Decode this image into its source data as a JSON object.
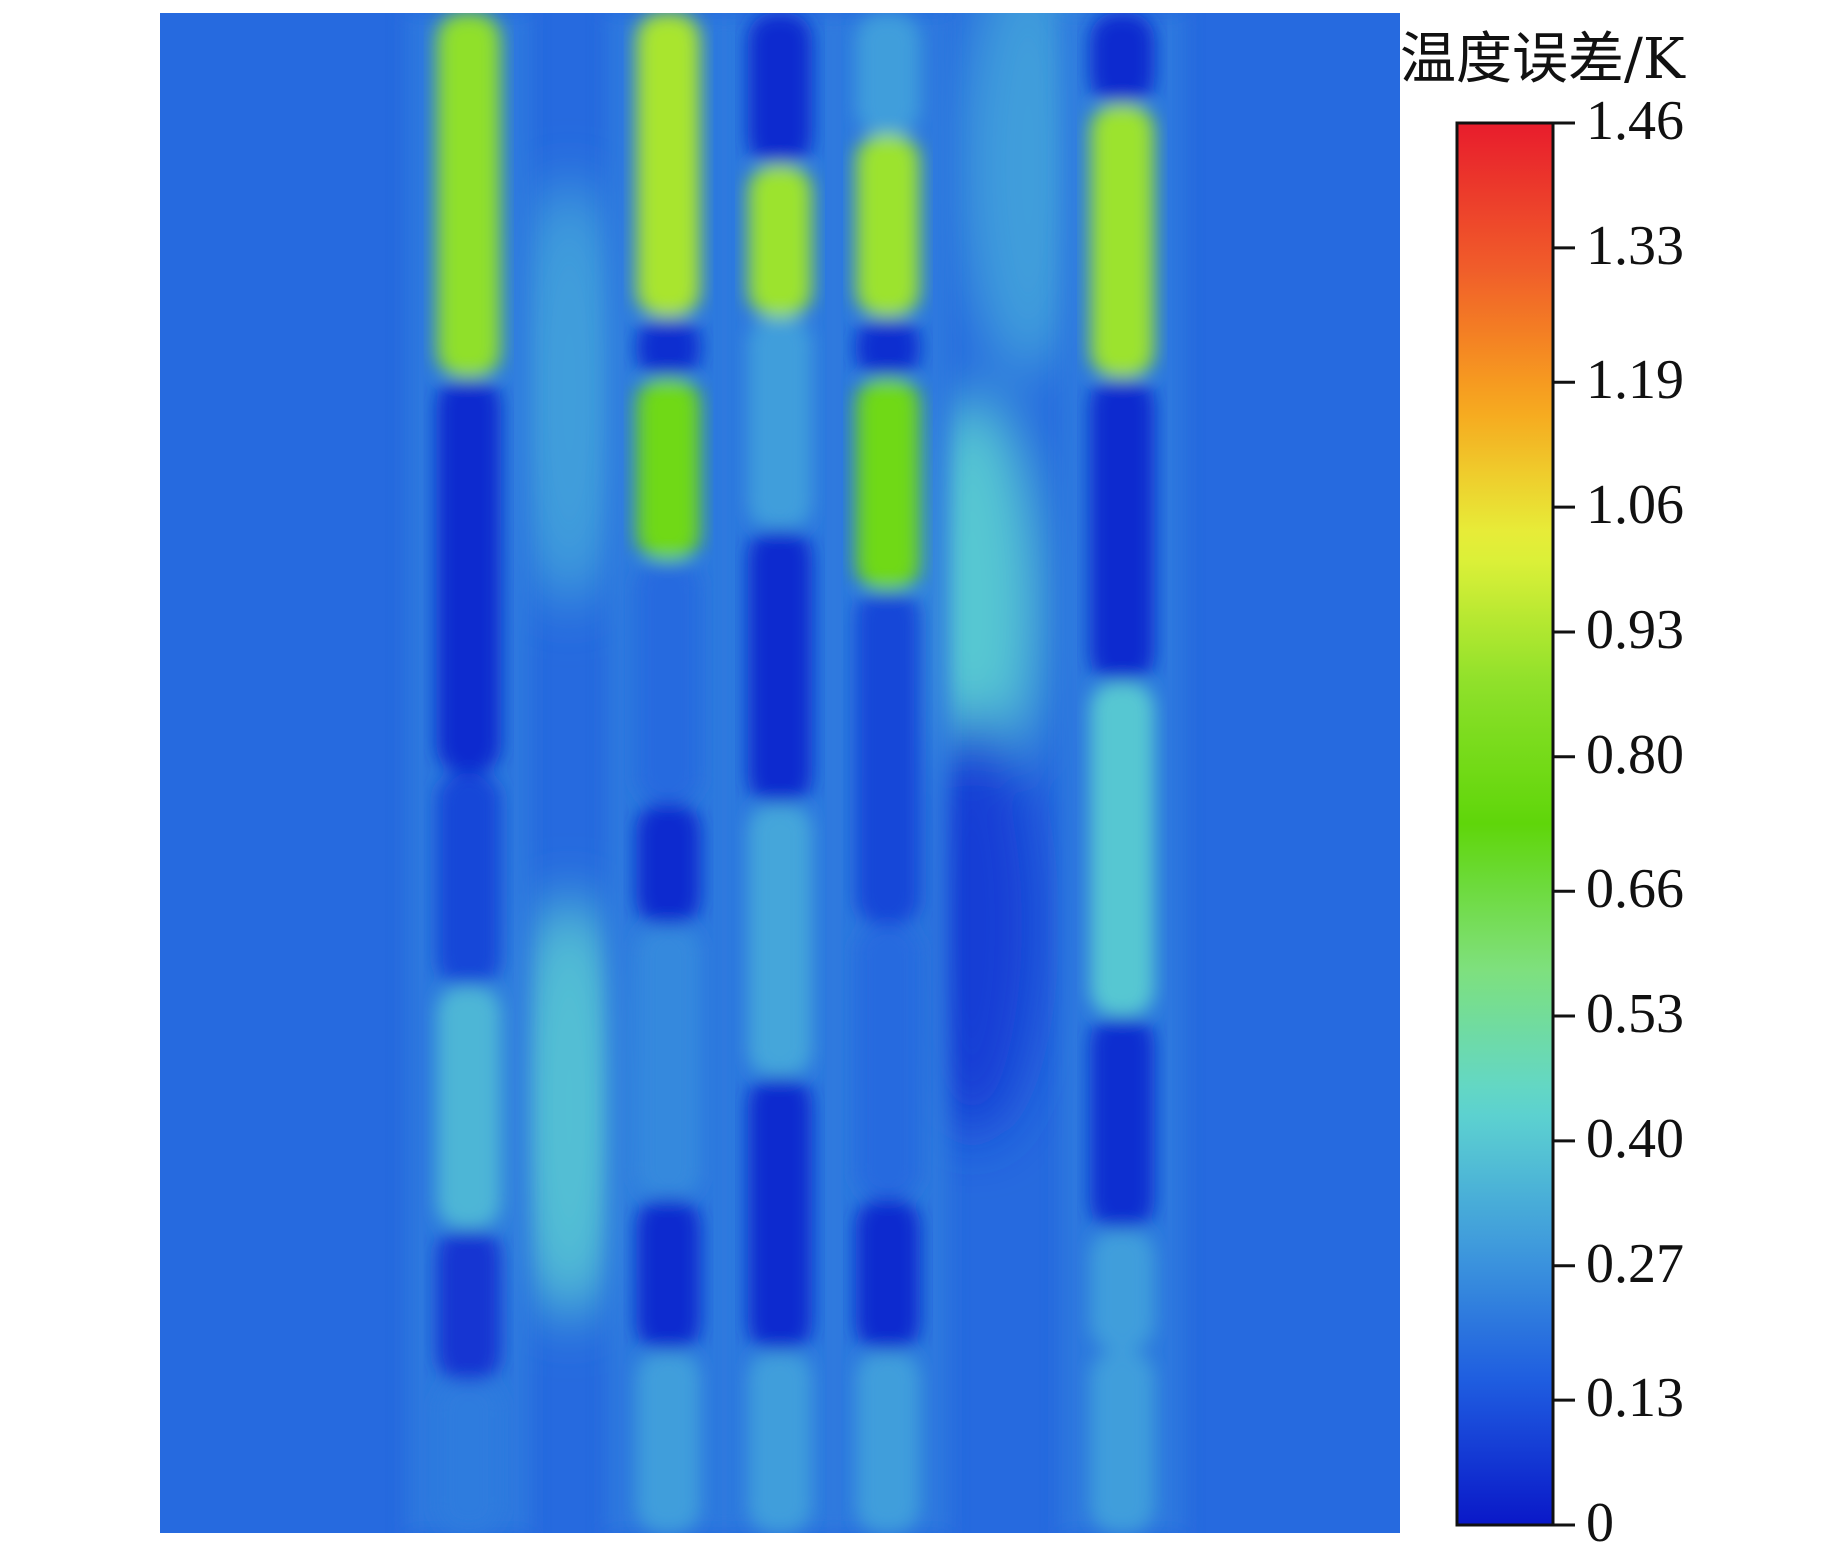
{
  "chart_data": {
    "type": "heatmap",
    "title": "",
    "colorbar": {
      "title": "温度误差/K",
      "unit": "K",
      "min": 0,
      "max": 1.46,
      "tick_labels": [
        "1.46",
        "1.33",
        "1.19",
        "1.06",
        "0.93",
        "0.80",
        "0.66",
        "0.53",
        "0.40",
        "0.27",
        "0.13",
        "0"
      ],
      "tick_values": [
        1.46,
        1.33,
        1.19,
        1.06,
        0.93,
        0.8,
        0.66,
        0.53,
        0.4,
        0.27,
        0.13,
        0
      ],
      "colormap": [
        "#0a18c8",
        "#1e5be0",
        "#3f9bdc",
        "#5fd6cf",
        "#7fe07a",
        "#5fd60a",
        "#8ee02a",
        "#e6f23a",
        "#f7a51e",
        "#f05a2a",
        "#e81c2c"
      ]
    },
    "field": {
      "background_value": 0.18,
      "columns": [
        {
          "center": 0.249,
          "segments": [
            {
              "y0": 0.0,
              "y1": 0.24,
              "value": 0.88
            },
            {
              "y0": 0.24,
              "y1": 0.5,
              "value": 0.04
            },
            {
              "y0": 0.5,
              "y1": 0.64,
              "value": 0.1
            },
            {
              "y0": 0.64,
              "y1": 0.8,
              "value": 0.36
            },
            {
              "y0": 0.8,
              "y1": 0.9,
              "value": 0.06
            },
            {
              "y0": 0.9,
              "y1": 1.0,
              "value": 0.22
            }
          ]
        },
        {
          "center": 0.41,
          "segments": [
            {
              "y0": 0.0,
              "y1": 0.2,
              "value": 0.92
            },
            {
              "y0": 0.2,
              "y1": 0.24,
              "value": 0.05
            },
            {
              "y0": 0.24,
              "y1": 0.36,
              "value": 0.78
            },
            {
              "y0": 0.36,
              "y1": 0.52,
              "value": 0.18
            },
            {
              "y0": 0.52,
              "y1": 0.6,
              "value": 0.04
            },
            {
              "y0": 0.6,
              "y1": 0.78,
              "value": 0.25
            },
            {
              "y0": 0.78,
              "y1": 0.88,
              "value": 0.04
            },
            {
              "y0": 0.88,
              "y1": 1.0,
              "value": 0.3
            }
          ]
        },
        {
          "center": 0.5,
          "segments": [
            {
              "y0": 0.0,
              "y1": 0.1,
              "value": 0.04
            },
            {
              "y0": 0.1,
              "y1": 0.2,
              "value": 0.9
            },
            {
              "y0": 0.2,
              "y1": 0.34,
              "value": 0.3
            },
            {
              "y0": 0.34,
              "y1": 0.52,
              "value": 0.04
            },
            {
              "y0": 0.52,
              "y1": 0.7,
              "value": 0.32
            },
            {
              "y0": 0.7,
              "y1": 0.88,
              "value": 0.04
            },
            {
              "y0": 0.88,
              "y1": 1.0,
              "value": 0.3
            }
          ]
        },
        {
          "center": 0.587,
          "segments": [
            {
              "y0": 0.0,
              "y1": 0.08,
              "value": 0.3
            },
            {
              "y0": 0.08,
              "y1": 0.2,
              "value": 0.9
            },
            {
              "y0": 0.2,
              "y1": 0.24,
              "value": 0.05
            },
            {
              "y0": 0.24,
              "y1": 0.38,
              "value": 0.78
            },
            {
              "y0": 0.38,
              "y1": 0.6,
              "value": 0.1
            },
            {
              "y0": 0.6,
              "y1": 0.78,
              "value": 0.18
            },
            {
              "y0": 0.78,
              "y1": 0.88,
              "value": 0.04
            },
            {
              "y0": 0.88,
              "y1": 1.0,
              "value": 0.3
            }
          ]
        },
        {
          "center": 0.776,
          "segments": [
            {
              "y0": 0.0,
              "y1": 0.06,
              "value": 0.04
            },
            {
              "y0": 0.06,
              "y1": 0.24,
              "value": 0.9
            },
            {
              "y0": 0.24,
              "y1": 0.44,
              "value": 0.04
            },
            {
              "y0": 0.44,
              "y1": 0.66,
              "value": 0.4
            },
            {
              "y0": 0.66,
              "y1": 0.8,
              "value": 0.05
            },
            {
              "y0": 0.8,
              "y1": 0.88,
              "value": 0.3
            },
            {
              "y0": 0.88,
              "y1": 1.0,
              "value": 0.3
            }
          ]
        }
      ],
      "blobs": [
        {
          "x": 0.33,
          "y": 0.72,
          "value": 0.38
        },
        {
          "x": 0.33,
          "y": 0.25,
          "value": 0.3
        },
        {
          "x": 0.655,
          "y": 0.39,
          "value": 0.4
        },
        {
          "x": 0.655,
          "y": 0.6,
          "value": 0.08
        },
        {
          "x": 0.7,
          "y": 0.1,
          "value": 0.3
        }
      ]
    }
  }
}
